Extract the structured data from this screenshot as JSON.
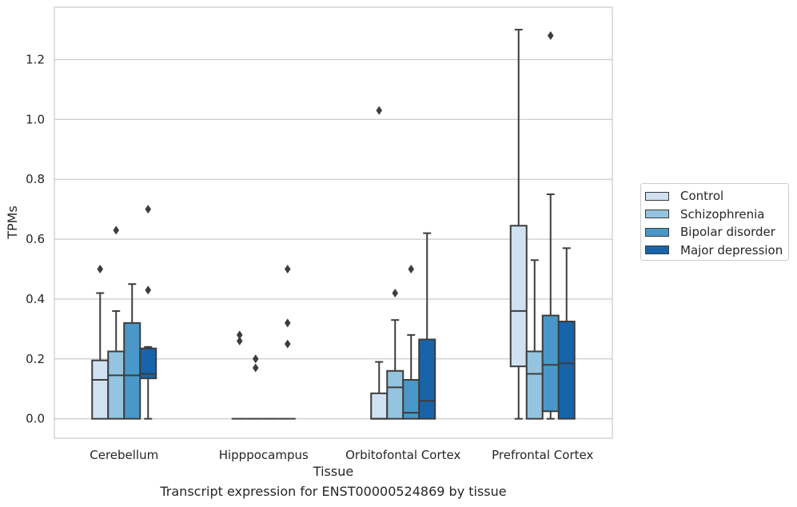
{
  "chart_data": {
    "type": "boxplot",
    "xlabel": "Tissue",
    "ylabel": "TPMs",
    "ylim": [
      -0.065,
      1.375
    ],
    "yticks": [
      0.0,
      0.2,
      0.4,
      0.6,
      0.8,
      1.0,
      1.2
    ],
    "ytick_labels": [
      "0.0",
      "0.2",
      "0.4",
      "0.6",
      "0.8",
      "1.0",
      "1.2"
    ],
    "grid": "horizontal",
    "legend_position": "right",
    "categories": [
      "Cerebellum",
      "Hipppocampus",
      "Orbitofontal Cortex",
      "Prefrontal Cortex"
    ],
    "series": [
      {
        "name": "Control",
        "color": "#d0e1f2",
        "boxes": [
          {
            "whislo": 0.0,
            "q1": 0.0,
            "med": 0.13,
            "q3": 0.195,
            "whishi": 0.42,
            "fliers": [
              0.5
            ]
          },
          {
            "whislo": 0.0,
            "q1": 0.0,
            "med": 0.0,
            "q3": 0.0,
            "whishi": 0.0,
            "fliers": [
              0.26,
              0.28
            ]
          },
          {
            "whislo": 0.0,
            "q1": 0.0,
            "med": 0.0,
            "q3": 0.085,
            "whishi": 0.19,
            "fliers": [
              1.03
            ]
          },
          {
            "whislo": 0.0,
            "q1": 0.175,
            "med": 0.36,
            "q3": 0.645,
            "whishi": 1.3,
            "fliers": []
          }
        ]
      },
      {
        "name": "Schizophrenia",
        "color": "#94c4df",
        "boxes": [
          {
            "whislo": 0.0,
            "q1": 0.0,
            "med": 0.145,
            "q3": 0.225,
            "whishi": 0.36,
            "fliers": [
              0.63
            ]
          },
          {
            "whislo": 0.0,
            "q1": 0.0,
            "med": 0.0,
            "q3": 0.0,
            "whishi": 0.0,
            "fliers": [
              0.17,
              0.2
            ]
          },
          {
            "whislo": 0.0,
            "q1": 0.0,
            "med": 0.105,
            "q3": 0.16,
            "whishi": 0.33,
            "fliers": [
              0.42
            ]
          },
          {
            "whislo": 0.0,
            "q1": 0.0,
            "med": 0.15,
            "q3": 0.225,
            "whishi": 0.53,
            "fliers": []
          }
        ]
      },
      {
        "name": "Bipolar disorder",
        "color": "#4a98c9",
        "boxes": [
          {
            "whislo": 0.0,
            "q1": 0.0,
            "med": 0.145,
            "q3": 0.32,
            "whishi": 0.45,
            "fliers": []
          },
          {
            "whislo": 0.0,
            "q1": 0.0,
            "med": 0.0,
            "q3": 0.0,
            "whishi": 0.0,
            "fliers": []
          },
          {
            "whislo": 0.0,
            "q1": 0.0,
            "med": 0.02,
            "q3": 0.13,
            "whishi": 0.28,
            "fliers": [
              0.5
            ]
          },
          {
            "whislo": 0.0,
            "q1": 0.025,
            "med": 0.18,
            "q3": 0.345,
            "whishi": 0.75,
            "fliers": [
              1.28
            ]
          }
        ]
      },
      {
        "name": "Major depression",
        "color": "#1764ab",
        "boxes": [
          {
            "whislo": 0.0,
            "q1": 0.135,
            "med": 0.15,
            "q3": 0.235,
            "whishi": 0.24,
            "fliers": [
              0.43,
              0.7
            ]
          },
          {
            "whislo": 0.0,
            "q1": 0.0,
            "med": 0.0,
            "q3": 0.0,
            "whishi": 0.0,
            "fliers": [
              0.25,
              0.32,
              0.5
            ]
          },
          {
            "whislo": 0.0,
            "q1": 0.0,
            "med": 0.06,
            "q3": 0.265,
            "whishi": 0.62,
            "fliers": []
          },
          {
            "whislo": 0.0,
            "q1": 0.0,
            "med": 0.185,
            "q3": 0.325,
            "whishi": 0.57,
            "fliers": []
          }
        ]
      }
    ]
  },
  "caption": "Transcript expression for ENST00000524869 by tissue"
}
